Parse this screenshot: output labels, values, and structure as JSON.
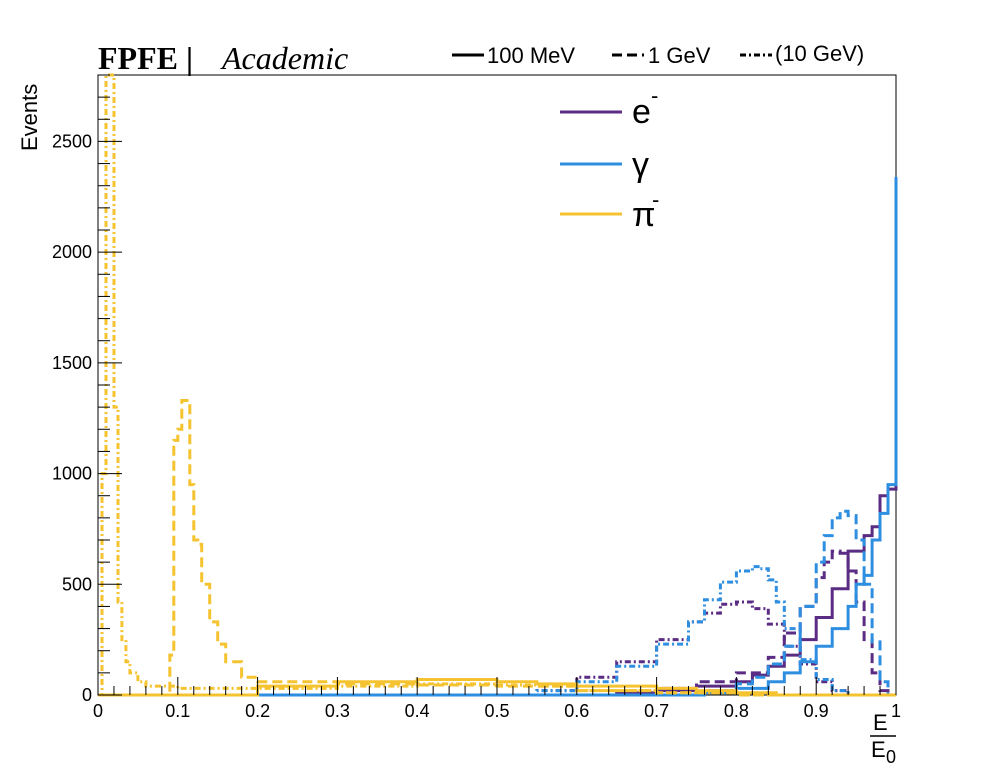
{
  "header": {
    "brand_bold": "FPFE |",
    "brand_italic": "Academic"
  },
  "style_legend": [
    {
      "label": "100 MeV",
      "dash": "solid"
    },
    {
      "label": "1 GeV",
      "dash": "dashed"
    },
    {
      "label": "(10 GeV)",
      "dash": "dashdot"
    }
  ],
  "particle_legend": [
    {
      "symbol": "e",
      "sup": "-",
      "color": "#5b2c83"
    },
    {
      "symbol": "γ",
      "sup": "",
      "color": "#2e8ee0"
    },
    {
      "symbol": "π",
      "sup": "-",
      "color": "#f5c330"
    }
  ],
  "chart_data": {
    "type": "line",
    "title": "",
    "xlabel_num": "E",
    "xlabel_den": "E",
    "xlabel_den_sub": "0",
    "ylabel": "Events",
    "xlim": [
      0,
      1
    ],
    "ylim": [
      0,
      2800
    ],
    "xticks": [
      0,
      0.1,
      0.2,
      0.3,
      0.4,
      0.5,
      0.6,
      0.7,
      0.8,
      0.9,
      1
    ],
    "xtick_labels": [
      "0",
      "0.1",
      "0.2",
      "0.3",
      "0.4",
      "0.5",
      "0.6",
      "0.7",
      "0.8",
      "0.9",
      "1"
    ],
    "yticks": [
      0,
      500,
      1000,
      1500,
      2000,
      2500
    ],
    "ytick_labels": [
      "0",
      "500",
      "1000",
      "1500",
      "2000",
      "2500"
    ],
    "grid": false,
    "series": [
      {
        "particle": "e-",
        "energy": "100 MeV",
        "color": "#5b2c83",
        "dash": "solid",
        "points": [
          [
            0,
            0
          ],
          [
            0.6,
            0
          ],
          [
            0.65,
            10
          ],
          [
            0.7,
            20
          ],
          [
            0.75,
            40
          ],
          [
            0.8,
            60
          ],
          [
            0.82,
            90
          ],
          [
            0.84,
            130
          ],
          [
            0.86,
            180
          ],
          [
            0.88,
            250
          ],
          [
            0.9,
            350
          ],
          [
            0.92,
            480
          ],
          [
            0.94,
            650
          ],
          [
            0.96,
            720
          ],
          [
            0.97,
            760
          ],
          [
            0.98,
            900
          ],
          [
            0.99,
            930
          ],
          [
            1.0,
            1800
          ]
        ]
      },
      {
        "particle": "e-",
        "energy": "1 GeV",
        "color": "#5b2c83",
        "dash": "dashed",
        "points": [
          [
            0,
            0
          ],
          [
            0.6,
            0
          ],
          [
            0.7,
            30
          ],
          [
            0.75,
            60
          ],
          [
            0.8,
            100
          ],
          [
            0.84,
            170
          ],
          [
            0.86,
            280
          ],
          [
            0.88,
            400
          ],
          [
            0.9,
            530
          ],
          [
            0.91,
            600
          ],
          [
            0.92,
            650
          ],
          [
            0.93,
            640
          ],
          [
            0.94,
            560
          ],
          [
            0.95,
            420
          ],
          [
            0.96,
            250
          ],
          [
            0.97,
            100
          ],
          [
            0.98,
            20
          ],
          [
            0.99,
            0
          ],
          [
            1.0,
            0
          ]
        ]
      },
      {
        "particle": "e-",
        "energy": "(10 GeV)",
        "color": "#5b2c83",
        "dash": "dashdot",
        "points": [
          [
            0,
            0
          ],
          [
            0.55,
            20
          ],
          [
            0.6,
            80
          ],
          [
            0.65,
            150
          ],
          [
            0.7,
            250
          ],
          [
            0.74,
            330
          ],
          [
            0.76,
            370
          ],
          [
            0.78,
            410
          ],
          [
            0.8,
            420
          ],
          [
            0.82,
            390
          ],
          [
            0.84,
            320
          ],
          [
            0.86,
            220
          ],
          [
            0.88,
            140
          ],
          [
            0.9,
            60
          ],
          [
            0.92,
            20
          ],
          [
            0.94,
            0
          ],
          [
            1.0,
            0
          ]
        ]
      },
      {
        "particle": "gamma",
        "energy": "100 MeV",
        "color": "#2e8ee0",
        "dash": "solid",
        "points": [
          [
            0,
            0
          ],
          [
            0.7,
            0
          ],
          [
            0.75,
            10
          ],
          [
            0.8,
            30
          ],
          [
            0.84,
            60
          ],
          [
            0.86,
            100
          ],
          [
            0.88,
            150
          ],
          [
            0.9,
            220
          ],
          [
            0.92,
            300
          ],
          [
            0.94,
            400
          ],
          [
            0.95,
            500
          ],
          [
            0.96,
            540
          ],
          [
            0.97,
            700
          ],
          [
            0.98,
            820
          ],
          [
            0.99,
            950
          ],
          [
            1.0,
            2340
          ]
        ]
      },
      {
        "particle": "gamma",
        "energy": "1 GeV",
        "color": "#2e8ee0",
        "dash": "dashed",
        "points": [
          [
            0,
            0
          ],
          [
            0.7,
            0
          ],
          [
            0.76,
            20
          ],
          [
            0.8,
            50
          ],
          [
            0.82,
            80
          ],
          [
            0.84,
            140
          ],
          [
            0.86,
            220
          ],
          [
            0.88,
            400
          ],
          [
            0.9,
            600
          ],
          [
            0.91,
            720
          ],
          [
            0.92,
            800
          ],
          [
            0.93,
            830
          ],
          [
            0.94,
            810
          ],
          [
            0.95,
            700
          ],
          [
            0.96,
            500
          ],
          [
            0.97,
            240
          ],
          [
            0.98,
            60
          ],
          [
            0.99,
            0
          ],
          [
            1.0,
            0
          ]
        ]
      },
      {
        "particle": "gamma",
        "energy": "(10 GeV)",
        "color": "#2e8ee0",
        "dash": "dashdot",
        "points": [
          [
            0,
            0
          ],
          [
            0.55,
            20
          ],
          [
            0.6,
            60
          ],
          [
            0.65,
            130
          ],
          [
            0.7,
            230
          ],
          [
            0.74,
            330
          ],
          [
            0.76,
            430
          ],
          [
            0.78,
            510
          ],
          [
            0.8,
            560
          ],
          [
            0.82,
            580
          ],
          [
            0.83,
            570
          ],
          [
            0.84,
            520
          ],
          [
            0.85,
            420
          ],
          [
            0.86,
            300
          ],
          [
            0.88,
            160
          ],
          [
            0.9,
            70
          ],
          [
            0.92,
            20
          ],
          [
            0.94,
            0
          ],
          [
            1.0,
            0
          ]
        ]
      },
      {
        "particle": "pi-",
        "energy": "100 MeV",
        "color": "#f5c330",
        "dash": "solid",
        "points": [
          [
            0,
            0
          ],
          [
            0.2,
            40
          ],
          [
            0.3,
            60
          ],
          [
            0.4,
            70
          ],
          [
            0.5,
            60
          ],
          [
            0.55,
            50
          ],
          [
            0.6,
            40
          ],
          [
            0.7,
            30
          ],
          [
            0.75,
            20
          ],
          [
            0.8,
            10
          ],
          [
            0.85,
            0
          ],
          [
            1.0,
            0
          ]
        ]
      },
      {
        "particle": "pi-",
        "energy": "1 GeV",
        "color": "#f5c330",
        "dash": "dashed",
        "points": [
          [
            0,
            0
          ],
          [
            0.08,
            0
          ],
          [
            0.09,
            180
          ],
          [
            0.095,
            1150
          ],
          [
            0.1,
            1200
          ],
          [
            0.105,
            1330
          ],
          [
            0.11,
            1330
          ],
          [
            0.115,
            950
          ],
          [
            0.12,
            700
          ],
          [
            0.125,
            680
          ],
          [
            0.13,
            500
          ],
          [
            0.14,
            330
          ],
          [
            0.15,
            230
          ],
          [
            0.16,
            150
          ],
          [
            0.18,
            80
          ],
          [
            0.2,
            60
          ],
          [
            0.3,
            50
          ],
          [
            0.4,
            45
          ],
          [
            0.5,
            40
          ],
          [
            0.6,
            20
          ],
          [
            0.7,
            10
          ],
          [
            0.8,
            0
          ],
          [
            1.0,
            0
          ]
        ]
      },
      {
        "particle": "pi-",
        "energy": "(10 GeV)",
        "color": "#f5c330",
        "dash": "dashdot",
        "points": [
          [
            0,
            0
          ],
          [
            0.005,
            1000
          ],
          [
            0.01,
            2800
          ],
          [
            0.015,
            2800
          ],
          [
            0.02,
            1300
          ],
          [
            0.025,
            420
          ],
          [
            0.03,
            250
          ],
          [
            0.035,
            150
          ],
          [
            0.04,
            100
          ],
          [
            0.05,
            60
          ],
          [
            0.06,
            40
          ],
          [
            0.1,
            30
          ],
          [
            0.2,
            30
          ],
          [
            0.3,
            40
          ],
          [
            0.4,
            50
          ],
          [
            0.5,
            45
          ],
          [
            0.55,
            40
          ],
          [
            0.6,
            20
          ],
          [
            0.7,
            10
          ],
          [
            0.8,
            0
          ],
          [
            1.0,
            0
          ]
        ]
      }
    ]
  }
}
